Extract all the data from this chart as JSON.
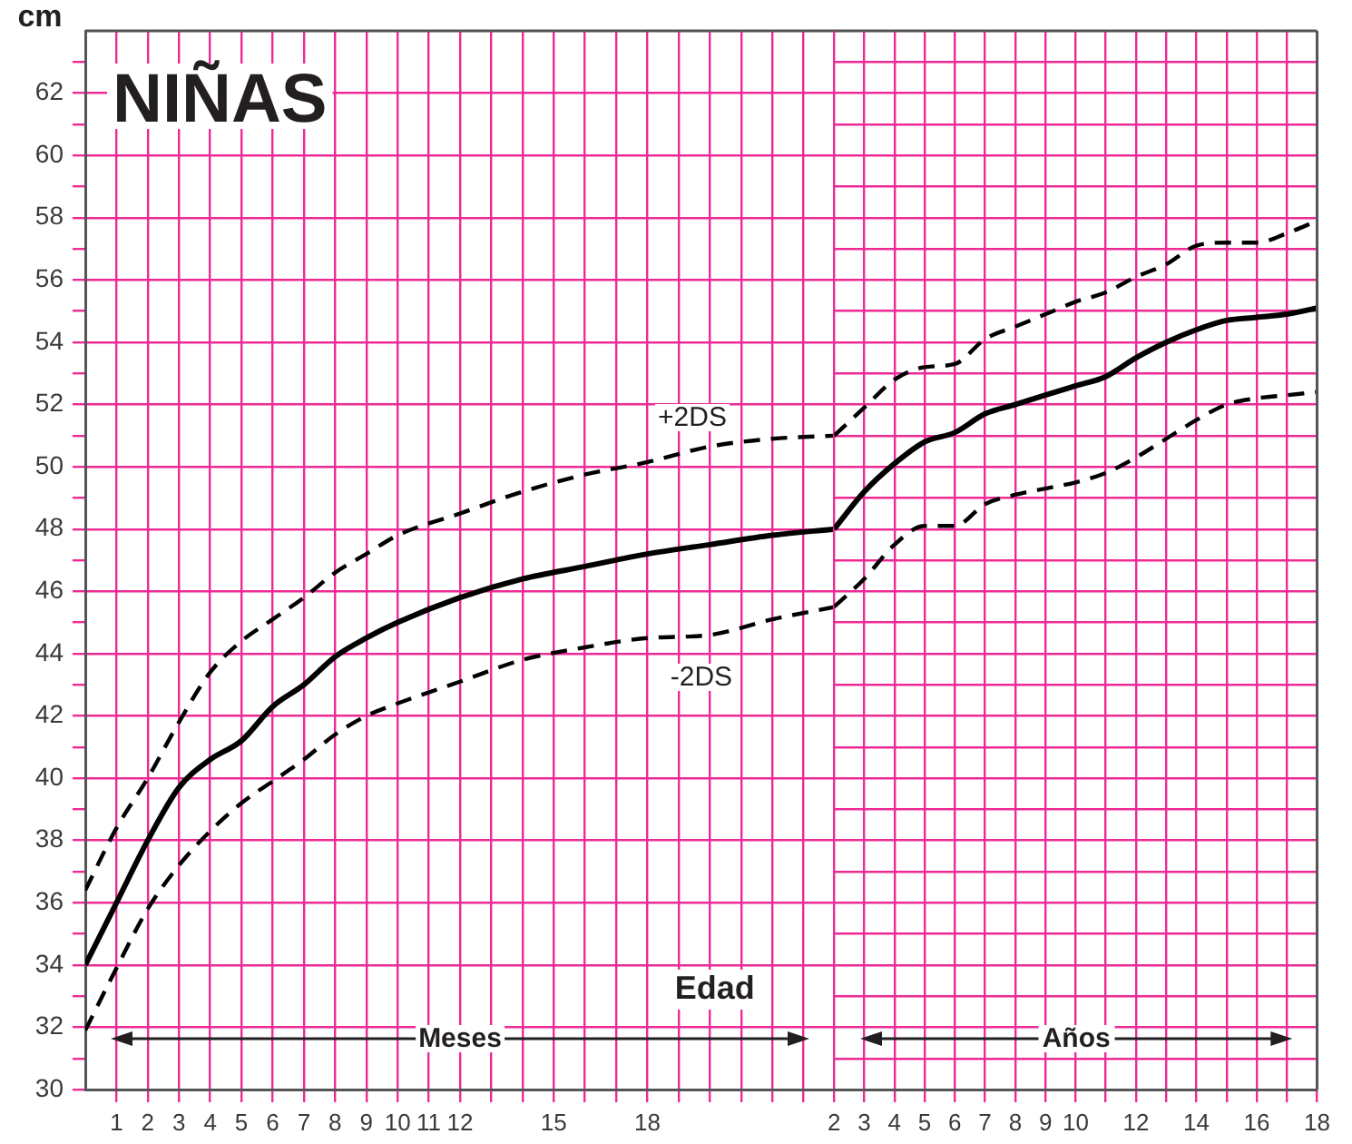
{
  "chart_data": [
    {
      "type": "line",
      "title": "NIÑAS",
      "xlabel": "Edad",
      "ylabel": "cm",
      "x": [
        0,
        1,
        2,
        3,
        4,
        5,
        6,
        7,
        8,
        9,
        10,
        12,
        14,
        16,
        18,
        20,
        22,
        24
      ],
      "series": [
        {
          "color": "#000000",
          "line_style": "dashed",
          "values": [
            36.4,
            38.4,
            40.0,
            41.8,
            43.4,
            44.4,
            45.1,
            45.8,
            46.6,
            47.2,
            47.8,
            48.5,
            49.2,
            49.75,
            50.15,
            50.65,
            50.9,
            51.0
          ]
        },
        {
          "color": "#000000",
          "line_style": "solid",
          "values": [
            34.0,
            36.0,
            38.0,
            39.7,
            40.6,
            41.2,
            42.3,
            43.0,
            43.9,
            44.5,
            45.0,
            45.8,
            46.4,
            46.8,
            47.2,
            47.5,
            47.8,
            48.0
          ]
        },
        {
          "color": "#000000",
          "line_style": "dashed",
          "values": [
            31.9,
            33.9,
            35.8,
            37.2,
            38.3,
            39.2,
            39.9,
            40.6,
            41.4,
            42.0,
            42.4,
            43.1,
            43.8,
            44.2,
            44.5,
            44.6,
            45.1,
            45.5
          ]
        }
      ],
      "xlim": [
        0,
        24
      ],
      "xticks": [
        1,
        2,
        3,
        4,
        5,
        6,
        7,
        8,
        9,
        10,
        11,
        12,
        {
          "value": 13,
          "label": null
        },
        {
          "value": 14,
          "label": null
        },
        15,
        {
          "value": 16,
          "label": null
        },
        {
          "value": 17,
          "label": null
        },
        18,
        {
          "value": 19,
          "label": null
        },
        {
          "value": 20,
          "label": null
        },
        {
          "value": 21,
          "label": null
        },
        {
          "value": 22,
          "label": null
        },
        {
          "value": 23,
          "label": null
        }
      ],
      "ylim": [
        30,
        64
      ],
      "yticks": [
        30,
        {
          "value": 31,
          "label": null
        },
        32,
        {
          "value": 33,
          "label": null
        },
        34,
        {
          "value": 35,
          "label": null
        },
        36,
        {
          "value": 37,
          "label": null
        },
        38,
        {
          "value": 39,
          "label": null
        },
        40,
        {
          "value": 41,
          "label": null
        },
        42,
        {
          "value": 43,
          "label": null
        },
        44,
        {
          "value": 45,
          "label": null
        },
        46,
        {
          "value": 47,
          "label": null
        },
        48,
        {
          "value": 49,
          "label": null
        },
        50,
        {
          "value": 51,
          "label": null
        },
        52,
        {
          "value": 53,
          "label": null
        },
        54,
        {
          "value": 55,
          "label": null
        },
        56,
        {
          "value": 57,
          "label": null
        },
        58,
        {
          "value": 59,
          "label": null
        },
        60,
        {
          "value": 61,
          "label": null
        },
        62,
        {
          "value": 63,
          "label": null
        }
      ],
      "grid": true,
      "legend": false,
      "marker": "none",
      "annotations": [
        "+2DS",
        "-2DS",
        "Meses"
      ]
    },
    {
      "type": "line",
      "x": [
        2,
        3,
        4,
        5,
        6,
        7,
        8,
        9,
        10,
        11,
        12,
        13,
        14,
        15,
        16,
        17,
        18
      ],
      "series": [
        {
          "color": "#000000",
          "line_style": "dashed",
          "values": [
            51.0,
            51.9,
            52.8,
            53.2,
            53.3,
            54.1,
            54.5,
            54.9,
            55.3,
            55.6,
            56.1,
            56.5,
            57.1,
            57.2,
            57.2,
            57.5,
            57.9
          ]
        },
        {
          "color": "#000000",
          "line_style": "solid",
          "values": [
            48.0,
            49.2,
            50.1,
            50.8,
            51.1,
            51.7,
            52.0,
            52.3,
            52.6,
            52.9,
            53.5,
            54.0,
            54.4,
            54.7,
            54.8,
            54.9,
            55.1
          ]
        },
        {
          "color": "#000000",
          "line_style": "dashed",
          "values": [
            45.5,
            46.4,
            47.5,
            48.1,
            48.1,
            48.8,
            49.1,
            49.3,
            49.5,
            49.8,
            50.3,
            50.9,
            51.5,
            52.0,
            52.2,
            52.3,
            52.4
          ]
        }
      ],
      "xlim": [
        2,
        18
      ],
      "xticks": [
        2,
        3,
        4,
        5,
        6,
        7,
        8,
        9,
        10,
        {
          "value": 11,
          "label": null
        },
        12,
        {
          "value": 13,
          "label": null
        },
        14,
        {
          "value": 15,
          "label": null
        },
        16,
        {
          "value": 17,
          "label": null
        },
        18
      ],
      "ylim": [
        30,
        64
      ],
      "yticks": [
        30,
        31,
        32,
        33,
        34,
        35,
        36,
        37,
        38,
        39,
        40,
        41,
        42,
        43,
        44,
        45,
        46,
        47,
        48,
        49,
        50,
        51,
        52,
        53,
        54,
        55,
        56,
        57,
        58,
        59,
        60,
        61,
        62,
        63
      ],
      "tick_labels": "x",
      "grid": true,
      "legend": false,
      "marker": "none",
      "annotations": [
        "Años"
      ]
    }
  ]
}
